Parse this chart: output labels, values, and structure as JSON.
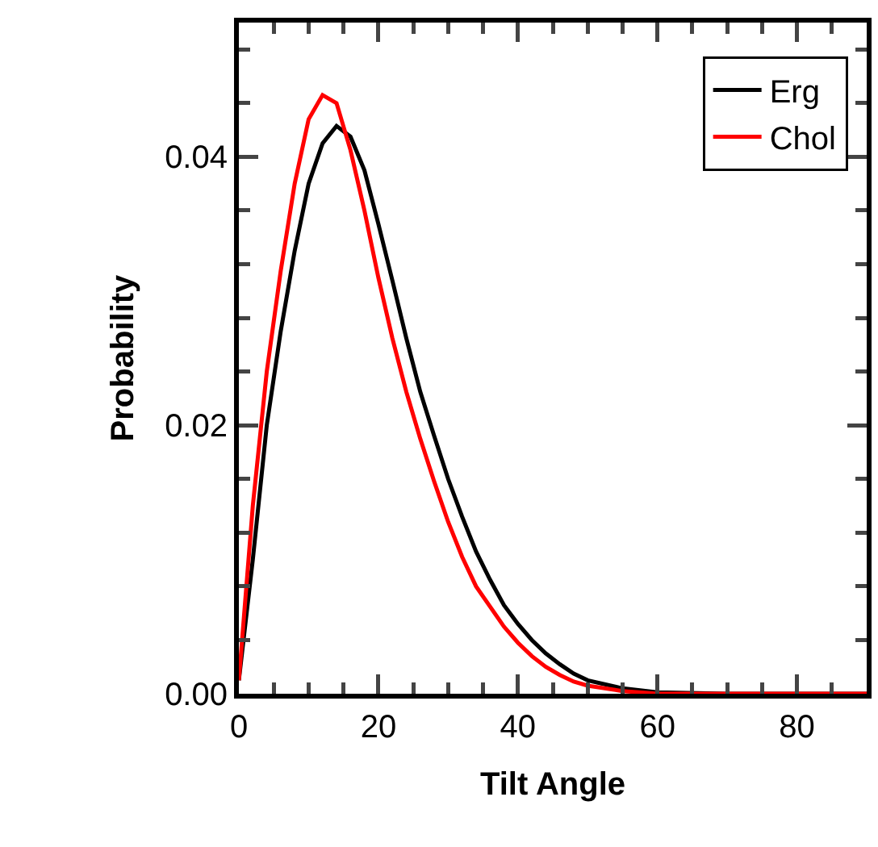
{
  "chart_data": {
    "type": "line",
    "xlabel": "Tilt Angle",
    "ylabel": "Probability",
    "x": [
      0,
      2,
      4,
      6,
      8,
      10,
      12,
      14,
      16,
      18,
      20,
      22,
      24,
      26,
      28,
      30,
      32,
      34,
      36,
      38,
      40,
      42,
      44,
      46,
      48,
      50,
      55,
      60,
      70,
      80,
      90
    ],
    "series": [
      {
        "name": "Erg",
        "color": "#000000",
        "values": [
          0.001,
          0.01,
          0.02,
          0.027,
          0.033,
          0.038,
          0.041,
          0.0423,
          0.0415,
          0.039,
          0.035,
          0.0308,
          0.0265,
          0.0225,
          0.0192,
          0.016,
          0.0132,
          0.0106,
          0.0085,
          0.0066,
          0.0052,
          0.004,
          0.003,
          0.0022,
          0.0015,
          0.001,
          0.0004,
          0.0001,
          0,
          0,
          0
        ]
      },
      {
        "name": "Chol",
        "color": "#ff0000",
        "values": [
          0.001,
          0.014,
          0.024,
          0.0315,
          0.038,
          0.0428,
          0.0446,
          0.044,
          0.0405,
          0.036,
          0.031,
          0.0265,
          0.0225,
          0.019,
          0.0158,
          0.0128,
          0.0102,
          0.008,
          0.0065,
          0.005,
          0.0038,
          0.0028,
          0.002,
          0.0014,
          0.0009,
          0.0006,
          0.0002,
          0,
          0,
          0,
          0
        ]
      }
    ],
    "xlim": [
      0,
      90
    ],
    "xticks": [
      0,
      {
        "value": 5,
        "label": null
      },
      {
        "value": 10,
        "label": null
      },
      {
        "value": 15,
        "label": null
      },
      20,
      {
        "value": 25,
        "label": null
      },
      {
        "value": 30,
        "label": null
      },
      {
        "value": 35,
        "label": null
      },
      40,
      {
        "value": 45,
        "label": null
      },
      {
        "value": 50,
        "label": null
      },
      {
        "value": 55,
        "label": null
      },
      60,
      {
        "value": 65,
        "label": null
      },
      {
        "value": 70,
        "label": null
      },
      {
        "value": 75,
        "label": null
      },
      80,
      {
        "value": 85,
        "label": null
      }
    ],
    "ylim": [
      0,
      0.05
    ],
    "yticks": [
      {
        "value": 0,
        "label": "0.00"
      },
      {
        "value": 0.004,
        "label": null
      },
      {
        "value": 0.008,
        "label": null
      },
      {
        "value": 0.012,
        "label": null
      },
      {
        "value": 0.016,
        "label": null
      },
      {
        "value": 0.02,
        "label": "0.02"
      },
      {
        "value": 0.024,
        "label": null
      },
      {
        "value": 0.028,
        "label": null
      },
      {
        "value": 0.032,
        "label": null
      },
      {
        "value": 0.036,
        "label": null
      },
      {
        "value": 0.04,
        "label": "0.04"
      },
      {
        "value": 0.044,
        "label": null
      },
      {
        "value": 0.048,
        "label": null
      }
    ],
    "grid": false,
    "legend": "top right",
    "marker": "none",
    "line_style": "solid"
  }
}
